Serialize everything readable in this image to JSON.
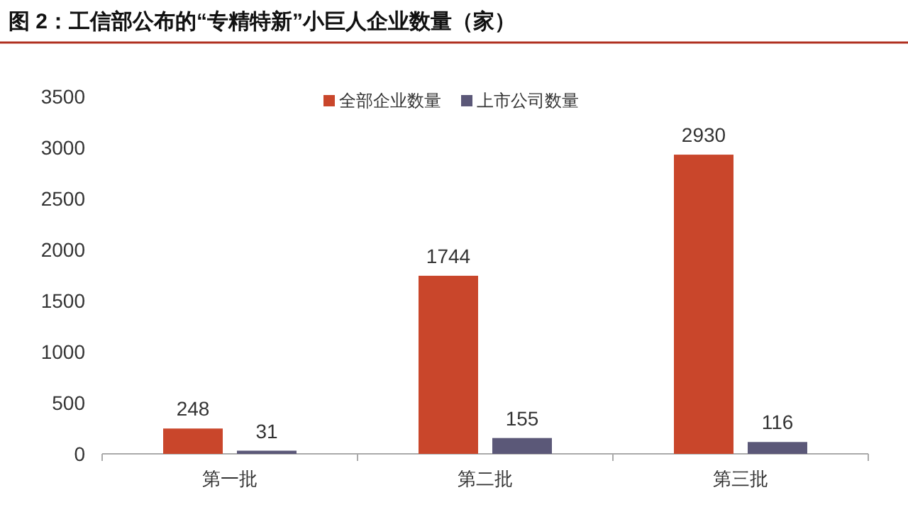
{
  "chart_data": {
    "type": "bar",
    "title": "图 2：工信部公布的“专精特新”小巨人企业数量（家）",
    "categories": [
      "第一批",
      "第二批",
      "第三批"
    ],
    "series": [
      {
        "name": "全部企业数量",
        "color": "#c9462b",
        "values": [
          248,
          1744,
          2930
        ]
      },
      {
        "name": "上市公司数量",
        "color": "#5b5878",
        "values": [
          31,
          155,
          116
        ]
      }
    ],
    "ylim": [
      0,
      3500
    ],
    "yticks": [
      0,
      500,
      1000,
      1500,
      2000,
      2500,
      3000,
      3500
    ],
    "data_labels": true,
    "legend": "top"
  }
}
